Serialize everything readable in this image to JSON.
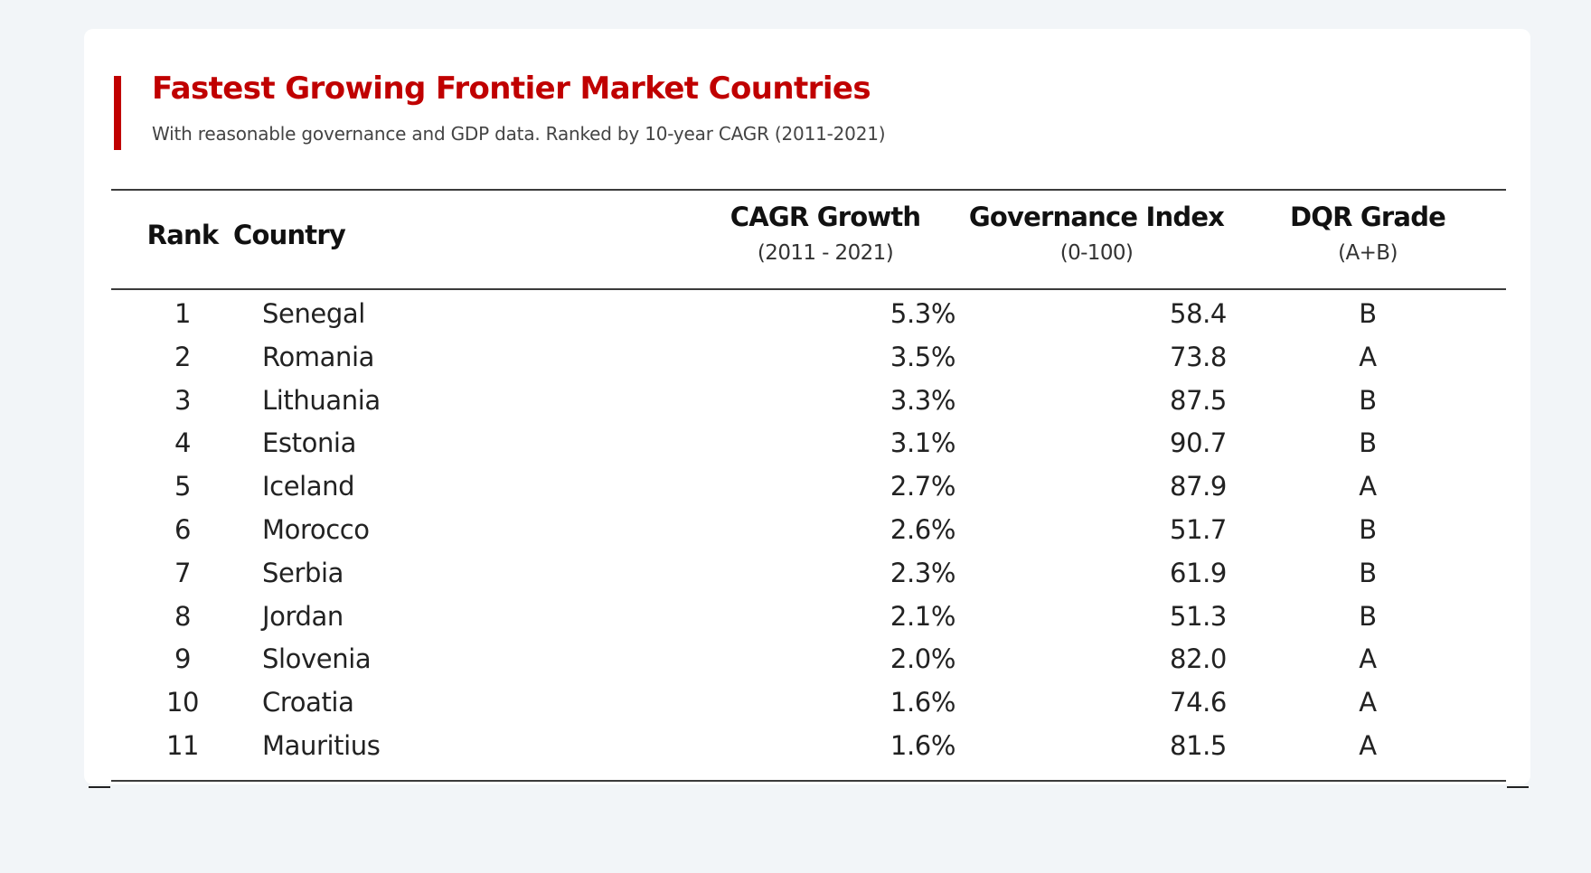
{
  "header": {
    "title": "Fastest Growing Frontier Market Countries",
    "subtitle": "With reasonable governance and GDP data. Ranked by 10-year CAGR (2011-2021)",
    "accent_color": "#c00000"
  },
  "table": {
    "columns": [
      {
        "label": "Rank",
        "sublabel": ""
      },
      {
        "label": "Country",
        "sublabel": ""
      },
      {
        "label": "CAGR Growth",
        "sublabel": "(2011 - 2021)"
      },
      {
        "label": "Governance Index",
        "sublabel": "(0-100)"
      },
      {
        "label": "DQR Grade",
        "sublabel": "(A+B)"
      }
    ],
    "rows": [
      {
        "rank": "1",
        "country": "Senegal",
        "cagr": "5.3%",
        "governance": "58.4",
        "grade": "B"
      },
      {
        "rank": "2",
        "country": "Romania",
        "cagr": "3.5%",
        "governance": "73.8",
        "grade": "A"
      },
      {
        "rank": "3",
        "country": "Lithuania",
        "cagr": "3.3%",
        "governance": "87.5",
        "grade": "B"
      },
      {
        "rank": "4",
        "country": "Estonia",
        "cagr": "3.1%",
        "governance": "90.7",
        "grade": "B"
      },
      {
        "rank": "5",
        "country": "Iceland",
        "cagr": "2.7%",
        "governance": "87.9",
        "grade": "A"
      },
      {
        "rank": "6",
        "country": "Morocco",
        "cagr": "2.6%",
        "governance": "51.7",
        "grade": "B"
      },
      {
        "rank": "7",
        "country": "Serbia",
        "cagr": "2.3%",
        "governance": "61.9",
        "grade": "B"
      },
      {
        "rank": "8",
        "country": "Jordan",
        "cagr": "2.1%",
        "governance": "51.3",
        "grade": "B"
      },
      {
        "rank": "9",
        "country": "Slovenia",
        "cagr": "2.0%",
        "governance": "82.0",
        "grade": "A"
      },
      {
        "rank": "10",
        "country": "Croatia",
        "cagr": "1.6%",
        "governance": "74.6",
        "grade": "A"
      },
      {
        "rank": "11",
        "country": "Mauritius",
        "cagr": "1.6%",
        "governance": "81.5",
        "grade": "A"
      }
    ]
  }
}
